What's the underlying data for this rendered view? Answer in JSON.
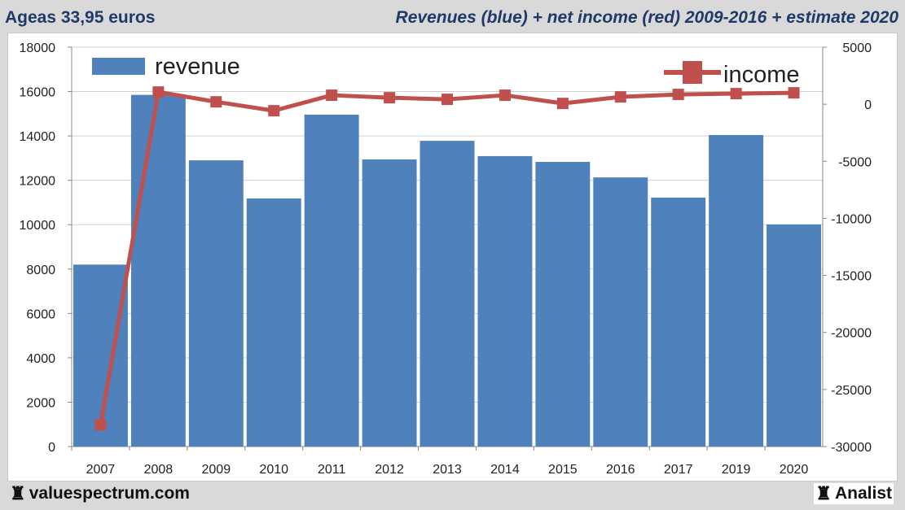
{
  "header": {
    "left": "Ageas 33,95 euros",
    "right": "Revenues (blue) + net income (red) 2009-2016 + estimate 2020"
  },
  "footer": {
    "left": "valuespectrum.com",
    "right": "Analist",
    "icon": "chess-rook-icon"
  },
  "chart_data": {
    "type": "bar+line",
    "categories": [
      "2007",
      "2008",
      "2009",
      "2010",
      "2011",
      "2012",
      "2013",
      "2014",
      "2015",
      "2016",
      "2017",
      "2019",
      "2020"
    ],
    "series": [
      {
        "name": "revenue",
        "type": "bar",
        "axis": "left",
        "color": "#4f81bd",
        "values": [
          8200,
          15850,
          12900,
          11180,
          14960,
          12940,
          13780,
          13090,
          12830,
          12130,
          11220,
          14040,
          10010
        ]
      },
      {
        "name": "income",
        "type": "line",
        "axis": "right",
        "color": "#c0504d",
        "values": [
          -28100,
          1070,
          210,
          -570,
          790,
          570,
          430,
          790,
          70,
          640,
          860,
          930,
          1000
        ]
      }
    ],
    "left_axis": {
      "ylim": [
        0,
        18000
      ],
      "ticks": [
        "0",
        "2000",
        "4000",
        "6000",
        "8000",
        "10000",
        "12000",
        "14000",
        "16000",
        "18000"
      ]
    },
    "right_axis": {
      "ylim": [
        -30000,
        5000
      ],
      "ticks": [
        "-30000",
        "-25000",
        "-20000",
        "-15000",
        "-10000",
        "-5000",
        "0",
        "5000"
      ]
    },
    "grid": true,
    "legend": "top (revenue left, income right)"
  }
}
